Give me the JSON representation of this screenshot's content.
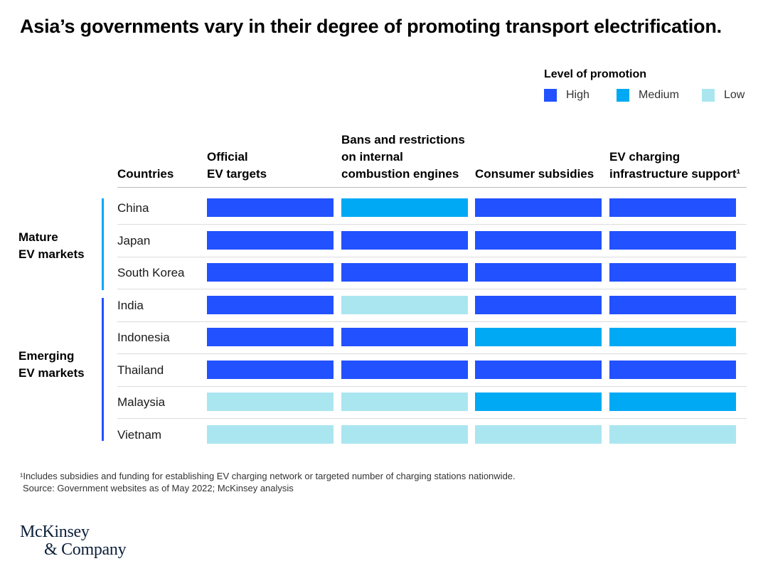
{
  "title": "Asia’s governments vary in their degree of promoting transport electrification.",
  "legend": {
    "title": "Level of promotion",
    "items": [
      {
        "key": "high",
        "label": "High",
        "color": "#2251ff"
      },
      {
        "key": "medium",
        "label": "Medium",
        "color": "#00a9f4"
      },
      {
        "key": "low",
        "label": "Low",
        "color": "#aae6f0"
      }
    ]
  },
  "chart_data": {
    "type": "table",
    "title": "Asia’s governments vary in their degree of promoting transport electrification.",
    "row_header": "Countries",
    "columns": [
      "Official\nEV targets",
      "Bans and restrictions\non internal\ncombustion engines",
      "Consumer subsidies",
      "EV charging\ninfrastructure support¹"
    ],
    "groups": [
      {
        "label": "Mature\nEV markets",
        "color": "#00a9f4",
        "rows": [
          "China",
          "Japan",
          "South Korea"
        ]
      },
      {
        "label": "Emerging\nEV markets",
        "color": "#2251ff",
        "rows": [
          "India",
          "Indonesia",
          "Thailand",
          "Malaysia",
          "Vietnam"
        ]
      }
    ],
    "rows": [
      {
        "country": "China",
        "levels": [
          "High",
          "Medium",
          "High",
          "High"
        ]
      },
      {
        "country": "Japan",
        "levels": [
          "High",
          "High",
          "High",
          "High"
        ]
      },
      {
        "country": "South Korea",
        "levels": [
          "High",
          "High",
          "High",
          "High"
        ]
      },
      {
        "country": "India",
        "levels": [
          "High",
          "Low",
          "High",
          "High"
        ]
      },
      {
        "country": "Indonesia",
        "levels": [
          "High",
          "High",
          "Medium",
          "Medium"
        ]
      },
      {
        "country": "Thailand",
        "levels": [
          "High",
          "High",
          "High",
          "High"
        ]
      },
      {
        "country": "Malaysia",
        "levels": [
          "Low",
          "Low",
          "Medium",
          "Medium"
        ]
      },
      {
        "country": "Vietnam",
        "levels": [
          "Low",
          "Low",
          "Low",
          "Low"
        ]
      }
    ],
    "level_colors": {
      "High": "#2251ff",
      "Medium": "#00a9f4",
      "Low": "#aae6f0"
    }
  },
  "footnote": "¹Includes subsidies and funding for establishing EV charging network or targeted number of charging stations nationwide.",
  "source": "Source: Government websites as of May 2022; McKinsey analysis",
  "logo": {
    "line1": "McKinsey",
    "line2": "& Company"
  }
}
